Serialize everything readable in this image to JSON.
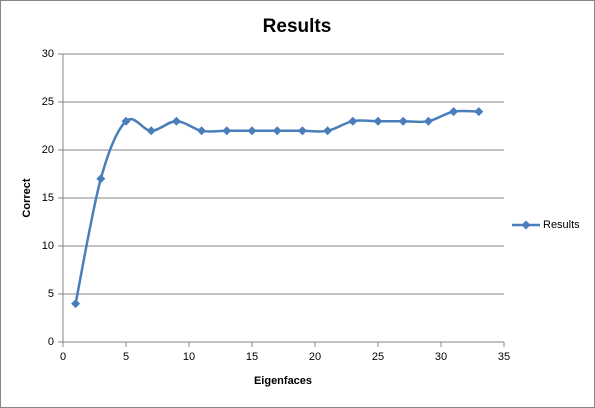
{
  "chart_data": {
    "type": "line",
    "title": "Results",
    "x_label": "Eigenfaces",
    "y_label": "Correct",
    "x": [
      1,
      3,
      5,
      7,
      9,
      11,
      13,
      15,
      17,
      19,
      21,
      23,
      25,
      27,
      29,
      31,
      33
    ],
    "series": [
      {
        "name": "Results",
        "color": "#4a7ebb",
        "values": [
          4,
          17,
          23,
          22,
          23,
          22,
          22,
          22,
          22,
          22,
          22,
          23,
          23,
          23,
          23,
          24,
          24
        ]
      }
    ],
    "xlim": [
      0,
      35
    ],
    "xticks": [
      0,
      5,
      10,
      15,
      20,
      25,
      30,
      35
    ],
    "ylim": [
      0,
      30
    ],
    "yticks": [
      0,
      5,
      10,
      15,
      20,
      25,
      30
    ],
    "grid": true,
    "smooth": true,
    "legend": "right"
  }
}
